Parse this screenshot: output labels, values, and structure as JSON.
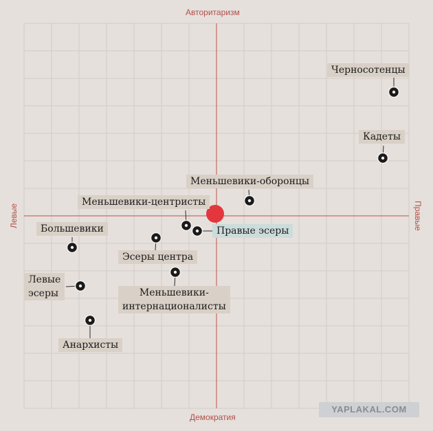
{
  "axes": {
    "top": "Авторитаризм",
    "bottom": "Демократия",
    "left": "Левые",
    "right": "Правые"
  },
  "chart_data": {
    "type": "scatter",
    "xlim": [
      -7,
      7
    ],
    "ylim": [
      -7,
      7
    ],
    "grid": true,
    "center_marker": [
      0,
      0
    ],
    "points": [
      {
        "name": "Черносотенцы",
        "x": 6.45,
        "y": 4.5
      },
      {
        "name": "Кадеты",
        "x": 6.05,
        "y": 2.1
      },
      {
        "name": "Меньшевики-оборонцы",
        "x": 1.2,
        "y": 0.55
      },
      {
        "name": "Меньшевики-центристы",
        "x": -1.1,
        "y": -0.35
      },
      {
        "name": "Правые эсеры",
        "x": -0.7,
        "y": -0.55
      },
      {
        "name": "Большевики",
        "x": -5.25,
        "y": -1.15
      },
      {
        "name": "Эсеры центра",
        "x": -2.2,
        "y": -0.8
      },
      {
        "name": "Меньшевики-интернационалисты",
        "x": -1.5,
        "y": -2.05
      },
      {
        "name": "Левые эсеры",
        "x": -4.95,
        "y": -2.55
      },
      {
        "name": "Анархисты",
        "x": -4.6,
        "y": -3.8
      }
    ]
  },
  "labels": {
    "chernosotentsy": "Черносотенцы",
    "kadety": "Кадеты",
    "mensheviki_oborontsy": "Меньшевики-оборонцы",
    "mensheviki_tsentristy": "Меньшевики-центристы",
    "pravye_esery": "Правые эсеры",
    "bolsheviki": "Большевики",
    "esery_tsentra": "Эсеры центра",
    "mensheviki_internatsionalisty_1": "Меньшевики-",
    "mensheviki_internatsionalisty_2": "интернационалисты",
    "levye_esery_1": "Левые",
    "levye_esery_2": "эсеры",
    "anarkhisty": "Анархисты"
  },
  "watermark": "YAPLAKAL.COM",
  "colors": {
    "background": "#e6e0dc",
    "grid": "#d2ccc9",
    "axis": "#c0504a",
    "center_marker": "#e3373d",
    "point": "#1a1a1a",
    "label_bg": "#d9d0c7",
    "label_highlight_bg": "#cbdcdb"
  }
}
